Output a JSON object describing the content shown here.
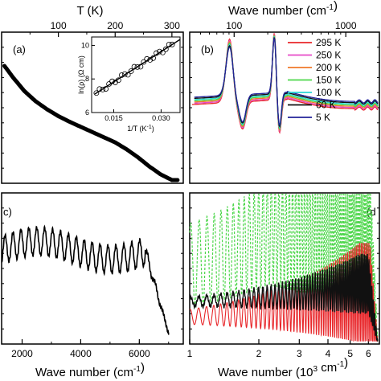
{
  "chart_data": [
    {
      "panel": "a",
      "type": "scatter",
      "top_axis_label": "T (K)",
      "top_ticks": [
        100,
        200,
        300
      ],
      "xlim": [
        0,
        320
      ],
      "trend": "resistivity decreasing with temperature",
      "points_T": [
        5,
        20,
        40,
        60,
        80,
        100,
        120,
        140,
        160,
        180,
        200,
        220,
        240,
        260,
        280,
        300,
        310
      ],
      "points_y": [
        1.0,
        0.9,
        0.78,
        0.69,
        0.62,
        0.56,
        0.51,
        0.465,
        0.42,
        0.375,
        0.33,
        0.27,
        0.2,
        0.12,
        0.05,
        0.0,
        0.0
      ],
      "inset": {
        "type": "scatter",
        "xlabel": "1/T (K",
        "xlabel_sup": "-1",
        "xlabel_close": ")",
        "ylabel": "ln(ρ)  (Ω cm)",
        "xticks": [
          "0.015",
          "0.030"
        ],
        "xtick_values": [
          0.015,
          0.03
        ],
        "yticks": [
          "6",
          "8",
          "10"
        ],
        "ytick_values": [
          6,
          8,
          10
        ],
        "xlim": [
          0.008,
          0.036
        ],
        "ylim": [
          6,
          10.5
        ],
        "points_x": [
          0.0095,
          0.0105,
          0.0115,
          0.0125,
          0.0135,
          0.0145,
          0.0155,
          0.0165,
          0.0175,
          0.0185,
          0.0195,
          0.0205,
          0.0215,
          0.0225,
          0.0235,
          0.0245,
          0.0255,
          0.0265,
          0.0275,
          0.0285,
          0.0295,
          0.0305,
          0.0315,
          0.0325,
          0.0335
        ],
        "fit": [
          [
            0.009,
            7.1
          ],
          [
            0.036,
            10.35
          ]
        ]
      }
    },
    {
      "panel": "b",
      "type": "line",
      "top_axis_label": "Wave number (cm",
      "top_axis_label_sup": "-1",
      "top_axis_label_close": ")",
      "x_scale": "log",
      "xlim": [
        40,
        2000
      ],
      "top_ticks": [
        "100",
        "1000"
      ],
      "top_tick_values": [
        100,
        1000
      ],
      "series": [
        {
          "name": "295 K",
          "color": "#e8262a"
        },
        {
          "name": "250 K",
          "color": "#e64ac8"
        },
        {
          "name": "200 K",
          "color": "#f07a2a"
        },
        {
          "name": "150 K",
          "color": "#4cd64a"
        },
        {
          "name": "100 K",
          "color": "#2ad6d6"
        },
        {
          "name": "60 K",
          "color": "#111111"
        },
        {
          "name": "5 K",
          "color": "#22229a"
        }
      ],
      "features": "two phonon resonances near 97 and 235 cm-1"
    },
    {
      "panel": "c",
      "type": "line",
      "xlabel": "Wave number (cm",
      "xlabel_sup": "-1",
      "xlabel_close": ")",
      "xticks": [
        "2000",
        "4000",
        "6000"
      ],
      "xtick_values": [
        2000,
        4000,
        6000
      ],
      "xlim": [
        1300,
        7500
      ],
      "envelope": "interference fringes, broad plateau from about 2000 to 6200 cm-1, falling to 7000 cm-1"
    },
    {
      "panel": "d",
      "type": "line",
      "xlabel": "Wave number (10",
      "xlabel_sup": "3",
      "xlabel_mid": " cm",
      "xlabel_sup2": "-1",
      "xlabel_close": ")",
      "x_scale": "log",
      "xticks": [
        "1",
        "2",
        "3",
        "4",
        "5",
        "6"
      ],
      "xtick_values": [
        1,
        2,
        3,
        4,
        5,
        6
      ],
      "xlim": [
        1,
        6.7
      ],
      "series_colors": [
        "#e8262a",
        "#111111",
        "#4cd64a"
      ],
      "features": "dashed green fringes with large amplitude, red and black fringes with growing amplitude toward 5.5 x 10^3 cm-1"
    }
  ],
  "labels": {
    "a": "(a)",
    "b": "(b)",
    "c": "c)",
    "d": "(d"
  }
}
